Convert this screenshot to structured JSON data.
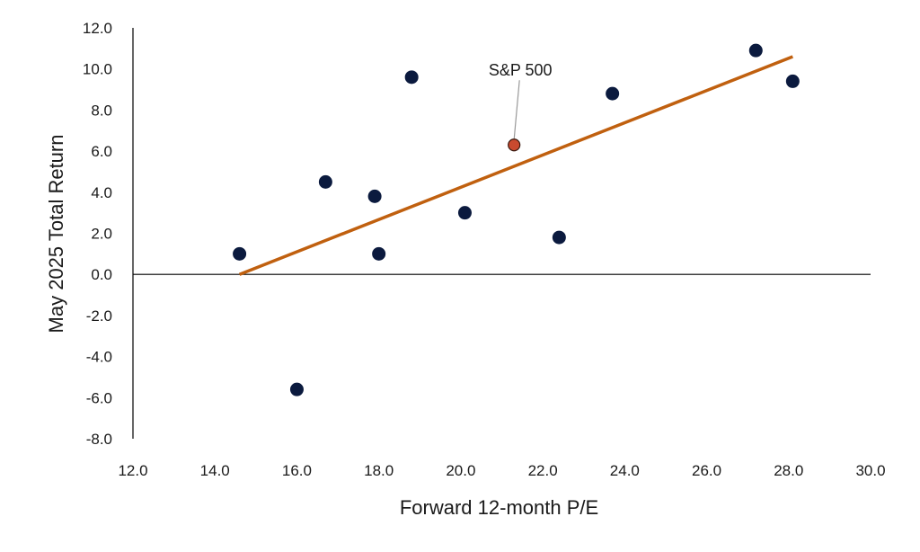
{
  "chart_data": {
    "type": "scatter",
    "title": "",
    "xlabel": "Forward 12-month P/E",
    "ylabel": "May 2025 Total Return",
    "xlim": [
      12.0,
      30.0
    ],
    "ylim": [
      -8.0,
      12.0
    ],
    "x_ticks": [
      "12.0",
      "14.0",
      "16.0",
      "18.0",
      "20.0",
      "22.0",
      "24.0",
      "26.0",
      "28.0",
      "30.0"
    ],
    "y_ticks": [
      "12.0",
      "10.0",
      "8.0",
      "6.0",
      "4.0",
      "2.0",
      "0.0",
      "-2.0",
      "-4.0",
      "-6.0",
      "-8.0"
    ],
    "grid": false,
    "points": [
      {
        "x": 14.6,
        "y": 1.0
      },
      {
        "x": 16.0,
        "y": -5.6
      },
      {
        "x": 16.7,
        "y": 4.5
      },
      {
        "x": 17.9,
        "y": 3.8
      },
      {
        "x": 18.0,
        "y": 1.0
      },
      {
        "x": 18.8,
        "y": 9.6
      },
      {
        "x": 20.1,
        "y": 3.0
      },
      {
        "x": 22.4,
        "y": 1.8
      },
      {
        "x": 23.7,
        "y": 8.8
      },
      {
        "x": 27.2,
        "y": 10.9
      },
      {
        "x": 28.1,
        "y": 9.4
      }
    ],
    "highlight": {
      "label": "S&P 500",
      "x": 21.3,
      "y": 6.3
    },
    "trendline": {
      "x1": 14.6,
      "y1": 0.0,
      "x2": 28.1,
      "y2": 10.6
    },
    "colors": {
      "point": "#0b1a3e",
      "highlight": "#c94a2f",
      "trendline": "#c0600f",
      "axis": "#000000",
      "annotation_line": "#999999"
    }
  }
}
